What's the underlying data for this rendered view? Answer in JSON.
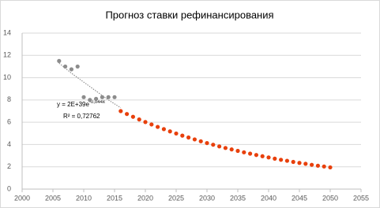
{
  "chart_data": {
    "type": "scatter",
    "title": "Прогноз ставки рефинансирования",
    "xlim": [
      2000,
      2055
    ],
    "xticks": [
      2000,
      2005,
      2010,
      2015,
      2020,
      2025,
      2030,
      2035,
      2040,
      2045,
      2050,
      2055
    ],
    "ylim": [
      0,
      14
    ],
    "yticks": [
      0,
      2,
      4,
      6,
      8,
      10,
      12,
      14
    ],
    "grid": true,
    "series": [
      {
        "color": "#8c8c8c",
        "x": [
          2006,
          2007,
          2008,
          2009,
          2010,
          2011,
          2012,
          2013,
          2014,
          2015
        ],
        "values": [
          11.5,
          11.0,
          10.75,
          11.0,
          8.25,
          8.0,
          8.1,
          8.25,
          8.25,
          8.25
        ]
      },
      {
        "color": "#e8400c",
        "x": [
          2016,
          2017,
          2018,
          2019,
          2020,
          2021,
          2022,
          2023,
          2024,
          2025,
          2026,
          2027,
          2028,
          2029,
          2030,
          2031,
          2032,
          2033,
          2034,
          2035,
          2036,
          2037,
          2038,
          2039,
          2040,
          2041,
          2042,
          2043,
          2044,
          2045,
          2046,
          2047,
          2048,
          2049,
          2050
        ],
        "values": [
          7.0,
          6.74,
          6.49,
          6.25,
          6.02,
          5.8,
          5.58,
          5.38,
          5.18,
          4.99,
          4.8,
          4.63,
          4.46,
          4.29,
          4.13,
          3.98,
          3.83,
          3.69,
          3.56,
          3.43,
          3.3,
          3.18,
          3.06,
          2.95,
          2.84,
          2.73,
          2.63,
          2.54,
          2.44,
          2.35,
          2.27,
          2.18,
          2.1,
          2.03,
          1.95
        ]
      }
    ],
    "trendline": {
      "color": "#7f7f7f",
      "dashed": true,
      "x": [
        2006,
        2008,
        2010,
        2012,
        2014,
        2016
      ],
      "values": [
        11.3,
        10.4,
        9.6,
        8.8,
        8.0,
        7.3
      ]
    },
    "equation": "y = 2E+39e",
    "equation_exponent": "-0,044x",
    "r_squared": "R² = 0,72762"
  }
}
